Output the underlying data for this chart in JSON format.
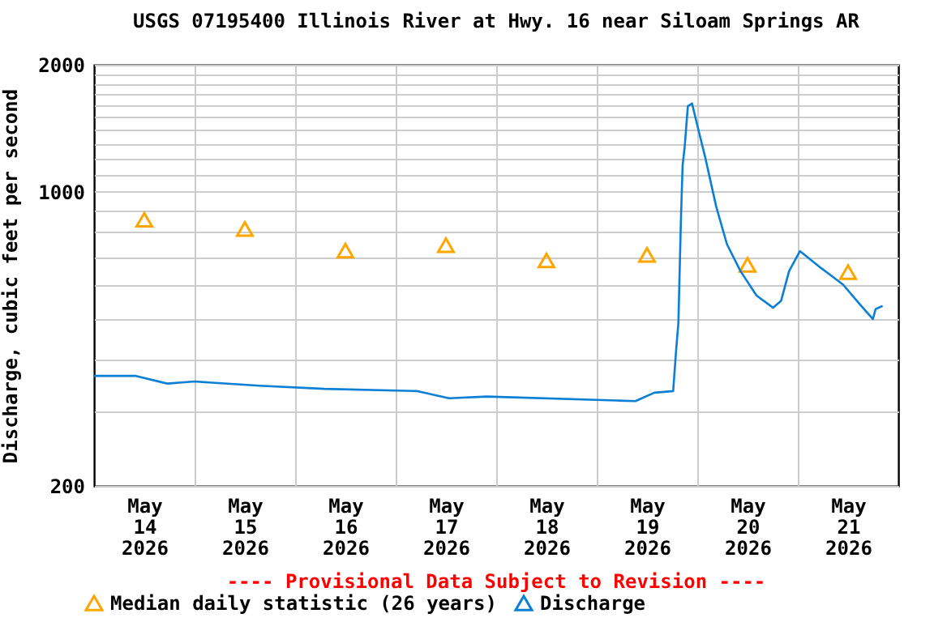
{
  "chart_data": {
    "type": "line",
    "title": "USGS 07195400 Illinois River at Hwy. 16 near Siloam Springs AR",
    "ylabel": "Discharge, cubic feet per second",
    "annotations": [
      "---- Provisional Data Subject to Revision ----"
    ],
    "xlim": [
      "2026-05-14T00:00",
      "2026-05-22T00:00"
    ],
    "xticks": [
      {
        "value": "2026-05-14T12:00",
        "label": "May 14 2026"
      },
      {
        "value": "2026-05-15T00:00",
        "label": null
      },
      {
        "value": "2026-05-15T12:00",
        "label": "May 15 2026"
      },
      {
        "value": "2026-05-16T00:00",
        "label": null
      },
      {
        "value": "2026-05-16T12:00",
        "label": "May 16 2026"
      },
      {
        "value": "2026-05-17T00:00",
        "label": null
      },
      {
        "value": "2026-05-17T12:00",
        "label": "May 17 2026"
      },
      {
        "value": "2026-05-18T00:00",
        "label": null
      },
      {
        "value": "2026-05-18T12:00",
        "label": "May 18 2026"
      },
      {
        "value": "2026-05-19T00:00",
        "label": null
      },
      {
        "value": "2026-05-19T12:00",
        "label": "May 19 2026"
      },
      {
        "value": "2026-05-20T00:00",
        "label": null
      },
      {
        "value": "2026-05-20T12:00",
        "label": "May 20 2026"
      },
      {
        "value": "2026-05-21T00:00",
        "label": null
      },
      {
        "value": "2026-05-21T12:00",
        "label": "May 21 2026"
      }
    ],
    "ylim": [
      200,
      2000
    ],
    "yticks": [
      200,
      {
        "value": 300,
        "label": null
      },
      {
        "value": 400,
        "label": null
      },
      {
        "value": 500,
        "label": null
      },
      {
        "value": 600,
        "label": null
      },
      {
        "value": 700,
        "label": null
      },
      {
        "value": 800,
        "label": null
      },
      {
        "value": 900,
        "label": null
      },
      1000,
      {
        "value": 1100,
        "label": null
      },
      {
        "value": 1200,
        "label": null
      },
      {
        "value": 1300,
        "label": null
      },
      {
        "value": 1400,
        "label": null
      },
      {
        "value": 1500,
        "label": null
      },
      {
        "value": 1600,
        "label": null
      },
      {
        "value": 1700,
        "label": null
      },
      {
        "value": 1800,
        "label": null
      },
      {
        "value": 1900,
        "label": null
      },
      2000
    ],
    "log": "y",
    "grid": true,
    "legend": "bottom",
    "series": [
      {
        "name": "Median daily statistic (26 years)",
        "type": "scatter",
        "marker": "triangle",
        "color": "#ffa500",
        "x": [
          "2026-05-14T12:00",
          "2026-05-15T12:00",
          "2026-05-16T12:00",
          "2026-05-17T12:00",
          "2026-05-18T12:00",
          "2026-05-19T12:00",
          "2026-05-20T12:00",
          "2026-05-21T12:00"
        ],
        "values": [
          857,
          815,
          724,
          746,
          686,
          707,
          670,
          644
        ]
      },
      {
        "name": "Discharge",
        "color": "#0b7fd4",
        "x": [
          "2026-05-14T00:00",
          "2026-05-14T10:00",
          "2026-05-14T17:30",
          "2026-05-15T00:00",
          "2026-05-15T15:30",
          "2026-05-16T07:00",
          "2026-05-17T05:00",
          "2026-05-17T12:45",
          "2026-05-17T21:45",
          "2026-05-19T04:45",
          "2026-05-19T09:15",
          "2026-05-19T13:45",
          "2026-05-19T18:15",
          "2026-05-19T18:55",
          "2026-05-19T19:30",
          "2026-05-19T20:05",
          "2026-05-19T20:30",
          "2026-05-19T21:00",
          "2026-05-19T21:45",
          "2026-05-19T22:45",
          "2026-05-20T00:00",
          "2026-05-20T01:55",
          "2026-05-20T04:30",
          "2026-05-20T07:05",
          "2026-05-20T10:20",
          "2026-05-20T14:10",
          "2026-05-20T18:05",
          "2026-05-20T20:00",
          "2026-05-20T21:55",
          "2026-05-21T00:30",
          "2026-05-21T05:40",
          "2026-05-21T10:50",
          "2026-05-21T14:40",
          "2026-05-21T17:55",
          "2026-05-21T18:35",
          "2026-05-21T20:15"
        ],
        "values": [
          365,
          365,
          350,
          354,
          346,
          340,
          336,
          323,
          326,
          319,
          318,
          333,
          336,
          415,
          489,
          844,
          1151,
          1278,
          1595,
          1619,
          1438,
          1204,
          923,
          750,
          647,
          566,
          530,
          550,
          647,
          722,
          657,
          601,
          542,
          498,
          526,
          535
        ]
      }
    ]
  }
}
